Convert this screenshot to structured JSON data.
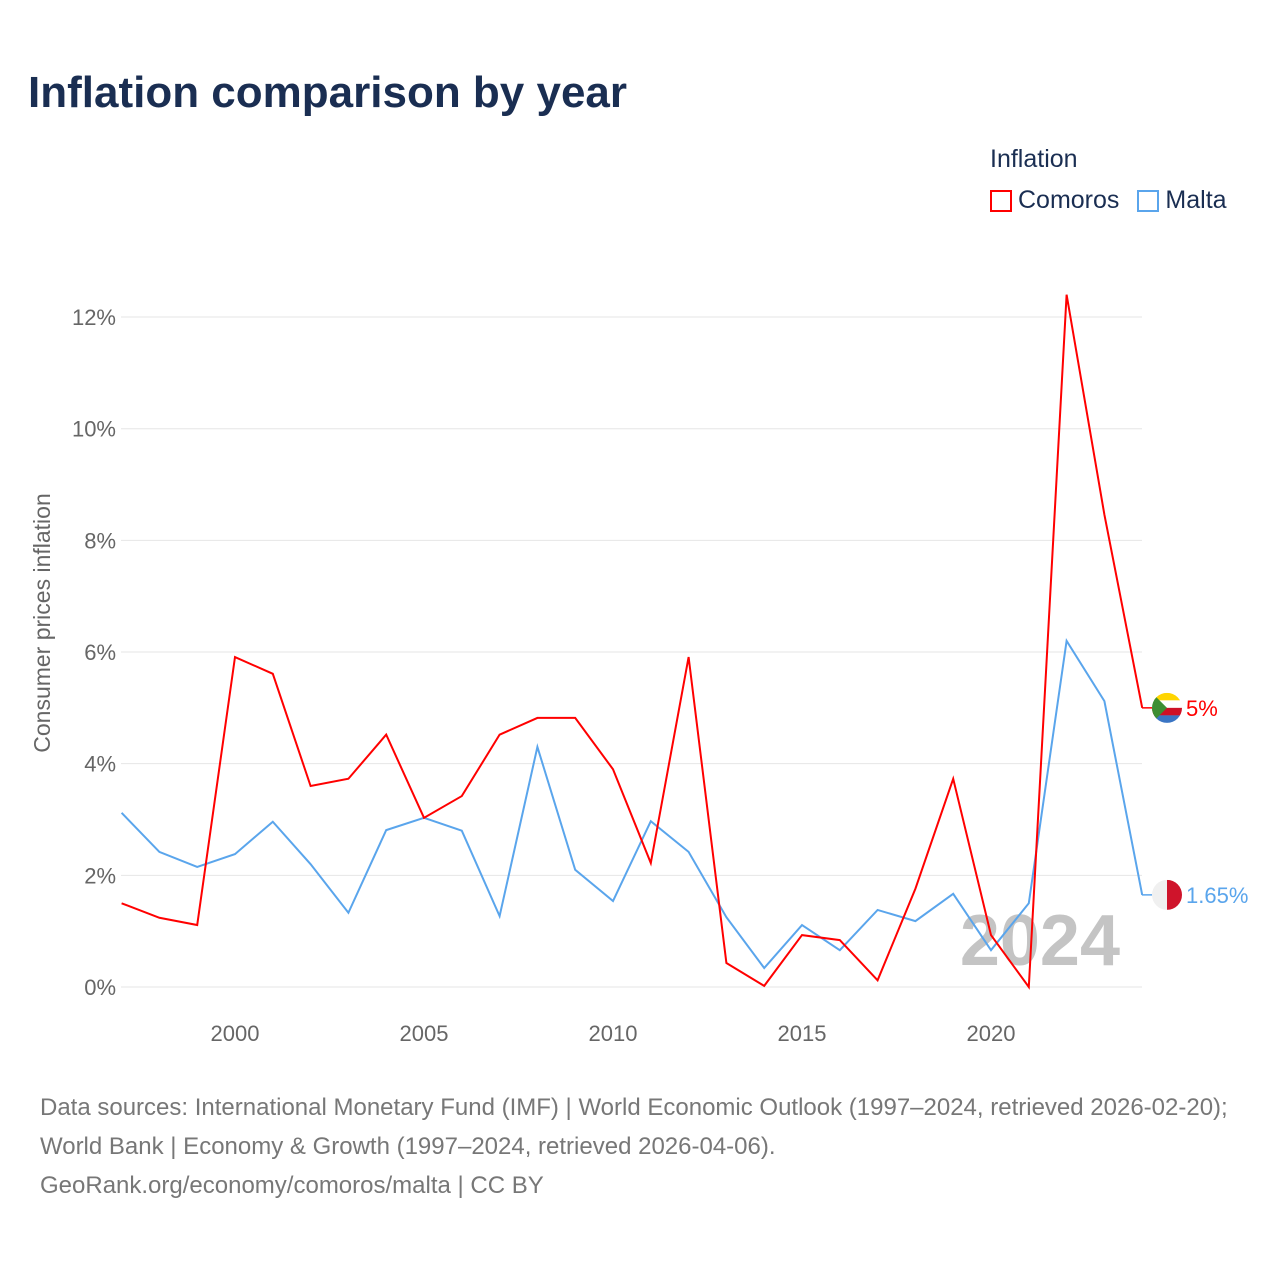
{
  "title": "Inflation comparison by year",
  "legend": {
    "title": "Inflation",
    "items": [
      {
        "label": "Comoros",
        "color": "#ff0000"
      },
      {
        "label": "Malta",
        "color": "#5aa5ec"
      }
    ]
  },
  "source": {
    "line1": "Data sources: International Monetary Fund (IMF) | World Economic Outlook (1997–2024, retrieved 2026-02-20); World Bank | Economy & Growth (1997–2024, retrieved 2026-04-06).",
    "line2": "GeoRank.org/economy/comoros/malta | CC BY"
  },
  "chart_data": {
    "type": "line",
    "ylabel": "Consumer prices inflation",
    "ylim": [
      0,
      12.4
    ],
    "yticks": [
      0,
      2,
      4,
      6,
      8,
      10,
      12
    ],
    "ytick_labels": [
      "0%",
      "2%",
      "4%",
      "6%",
      "8%",
      "10%",
      "12%"
    ],
    "xlim": [
      1997,
      2024
    ],
    "xticks": [
      2000,
      2005,
      2010,
      2015,
      2020
    ],
    "xtick_labels": [
      "2000",
      "2005",
      "2010",
      "2015",
      "2020"
    ],
    "watermark_year": "2024",
    "x": [
      1997,
      1998,
      1999,
      2000,
      2001,
      2002,
      2003,
      2004,
      2005,
      2006,
      2007,
      2008,
      2009,
      2010,
      2011,
      2012,
      2013,
      2014,
      2015,
      2016,
      2017,
      2018,
      2019,
      2020,
      2021,
      2022,
      2023,
      2024
    ],
    "series": [
      {
        "name": "Comoros",
        "color": "#ff0000",
        "end_label": "5%",
        "values": [
          1.5,
          1.24,
          1.11,
          5.91,
          5.61,
          3.6,
          3.73,
          4.52,
          3.03,
          3.42,
          4.52,
          4.82,
          4.82,
          3.9,
          2.22,
          5.91,
          0.43,
          0.02,
          0.93,
          0.84,
          0.12,
          1.76,
          3.73,
          0.93,
          0.0,
          12.4,
          8.46,
          5.0
        ]
      },
      {
        "name": "Malta",
        "color": "#5aa5ec",
        "end_label": "1.65%",
        "values": [
          3.12,
          2.42,
          2.15,
          2.38,
          2.96,
          2.2,
          1.33,
          2.81,
          3.03,
          2.8,
          1.27,
          4.3,
          2.1,
          1.54,
          2.97,
          2.42,
          1.25,
          0.34,
          1.11,
          0.66,
          1.38,
          1.18,
          1.67,
          0.66,
          1.5,
          6.2,
          5.12,
          1.65
        ]
      }
    ]
  }
}
